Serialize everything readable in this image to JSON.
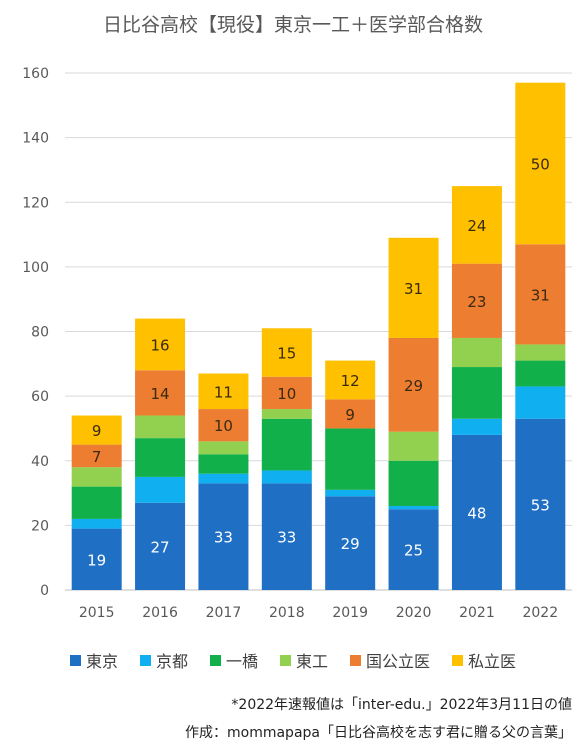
{
  "chart_data": {
    "type": "bar",
    "stacked": true,
    "title": "日比谷高校【現役】東京一工＋医学部合格数",
    "categories": [
      "2015",
      "2016",
      "2017",
      "2018",
      "2019",
      "2020",
      "2021",
      "2022"
    ],
    "ylim": [
      0,
      160
    ],
    "yticks": [
      0,
      20,
      40,
      60,
      80,
      100,
      120,
      140,
      160
    ],
    "grid": true,
    "legend_position": "bottom",
    "series": [
      {
        "name": "東京",
        "color": "#1F6FC5",
        "values": [
          19,
          27,
          33,
          33,
          29,
          25,
          48,
          53
        ],
        "labels": [
          "19",
          "27",
          "33",
          "33",
          "29",
          "25",
          "48",
          "53"
        ],
        "label_color": "#ffffff"
      },
      {
        "name": "京都",
        "color": "#0FAFF0",
        "values": [
          3,
          8,
          3,
          4,
          2,
          1,
          5,
          10
        ],
        "labels": [
          "",
          "",
          "",
          "",
          "",
          "",
          "",
          ""
        ],
        "label_color": "#ffffff"
      },
      {
        "name": "一橋",
        "color": "#12B04A",
        "values": [
          10,
          12,
          6,
          16,
          19,
          14,
          16,
          8
        ],
        "labels": [
          "",
          "",
          "",
          "",
          "",
          "",
          "",
          ""
        ],
        "label_color": "#ffffff"
      },
      {
        "name": "東工",
        "color": "#92D050",
        "values": [
          6,
          7,
          4,
          3,
          0,
          9,
          9,
          5
        ],
        "labels": [
          "",
          "",
          "",
          "",
          "",
          "",
          "",
          ""
        ],
        "label_color": "#ffffff"
      },
      {
        "name": "国公立医",
        "color": "#ED7D31",
        "values": [
          7,
          14,
          10,
          10,
          9,
          29,
          23,
          31
        ],
        "labels": [
          "7",
          "14",
          "10",
          "10",
          "9",
          "29",
          "23",
          "31"
        ],
        "label_color": "#3a2a10"
      },
      {
        "name": "私立医",
        "color": "#FFC000",
        "values": [
          9,
          16,
          11,
          15,
          12,
          31,
          24,
          50
        ],
        "labels": [
          "9",
          "16",
          "11",
          "15",
          "12",
          "31",
          "24",
          "50"
        ],
        "label_color": "#3a2a10"
      }
    ]
  },
  "notes": {
    "source": "*2022年速報値は「inter-edu.」2022年3月11日の値",
    "credit": "作成：mommapapa「日比谷高校を志す君に贈る父の言葉」"
  }
}
